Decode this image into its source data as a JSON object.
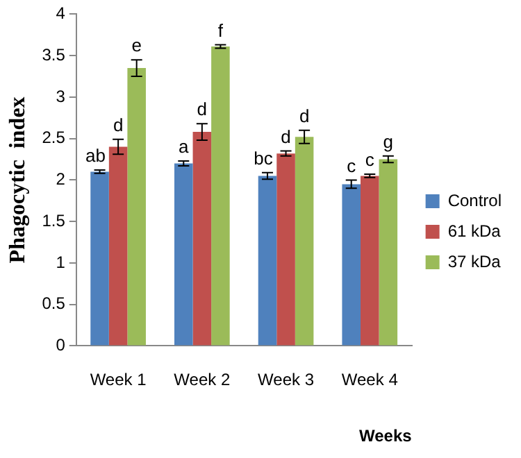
{
  "chart_data": {
    "type": "bar",
    "xlabel": "Weeks",
    "ylabel": "Phagocytic  index",
    "categories": [
      "Week 1",
      "Week 2",
      "Week 3",
      "Week 4"
    ],
    "series": [
      {
        "name": "Control",
        "color": "#4f81bd",
        "values": [
          2.1,
          2.2,
          2.05,
          1.95
        ],
        "errors": [
          0.02,
          0.03,
          0.04,
          0.05
        ]
      },
      {
        "name": "61 kDa",
        "color": "#c0504d",
        "values": [
          2.4,
          2.58,
          2.32,
          2.05
        ],
        "errors": [
          0.09,
          0.1,
          0.03,
          0.02
        ]
      },
      {
        "name": "37 kDa",
        "color": "#9bbb59",
        "values": [
          3.35,
          3.61,
          2.52,
          2.25
        ],
        "errors": [
          0.1,
          0.02,
          0.08,
          0.04
        ]
      }
    ],
    "ylim": [
      0,
      4
    ],
    "yticks": [
      0,
      0.5,
      1,
      1.5,
      2,
      2.5,
      3,
      3.5,
      4
    ],
    "grid": false,
    "legend": "right",
    "annotations": [
      "ab",
      "d",
      "e",
      "a",
      "d",
      "f",
      "bc",
      "d",
      "d",
      "c",
      "c",
      "g"
    ]
  }
}
